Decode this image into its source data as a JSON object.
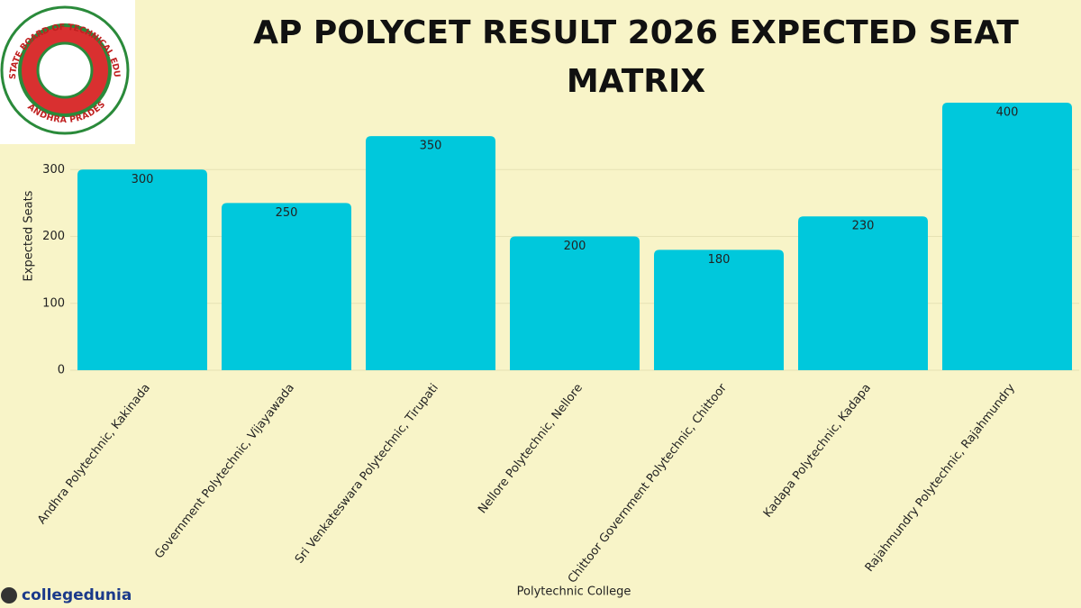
{
  "chart_data": {
    "type": "bar",
    "title": "AP POLYCET RESULT 2026 EXPECTED SEAT MATRIX",
    "categories": [
      "Andhra Polytechnic, Kakinada",
      "Government Polytechnic, Vijayawada",
      "Sri Venkateswara Polytechnic, Tirupati",
      "Nellore Polytechnic, Nellore",
      "Chittoor Government Polytechnic, Chittoor",
      "Kadapa Polytechnic, Kadapa",
      "Rajahmundry Polytechnic, Rajahmundry"
    ],
    "values": [
      300,
      250,
      350,
      200,
      180,
      230,
      400
    ],
    "color": "#00c8dc",
    "ylim": [
      0,
      400
    ],
    "yticks": [
      0,
      100,
      200,
      300
    ],
    "grid": true,
    "y_label": "Expected Seats",
    "x_label": "Polytechnic College"
  },
  "logo": {
    "ring_text": "STATE BOARD OF TECHNICAL EDUCATION & TRAINING",
    "bottom_text": "ANDHRA PRADESH"
  },
  "watermark": "collegedunia"
}
